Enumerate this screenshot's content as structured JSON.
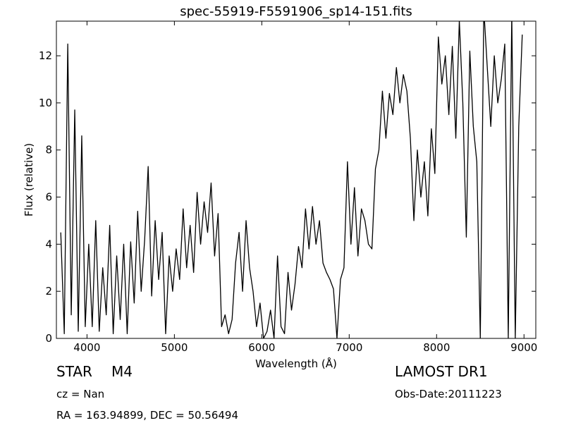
{
  "chart_data": {
    "type": "line",
    "title": "spec-55919-F5591906_sp14-151.fits",
    "x_label": "Wavelength (Å)",
    "y_label": "Flux (relative)",
    "annotations": [
      "STAR",
      "M4",
      "LAMOST DR1",
      "cz = Nan",
      "Obs-Date:20111223",
      "RA = 163.94899, DEC = 50.56494"
    ],
    "xlim": [
      3650,
      9135
    ],
    "ylim": [
      0,
      13.47
    ],
    "xticks": [
      4000,
      5000,
      6000,
      7000,
      8000,
      9000
    ],
    "yticks": [
      0,
      2,
      4,
      6,
      8,
      10,
      12
    ],
    "grid": false,
    "series": [
      {
        "color": "#000000",
        "x": [
          3700,
          3740,
          3780,
          3820,
          3860,
          3900,
          3940,
          3980,
          4020,
          4060,
          4100,
          4140,
          4180,
          4220,
          4260,
          4300,
          4340,
          4380,
          4420,
          4460,
          4500,
          4540,
          4580,
          4620,
          4660,
          4700,
          4740,
          4780,
          4820,
          4860,
          4900,
          4940,
          4980,
          5020,
          5060,
          5100,
          5140,
          5180,
          5220,
          5260,
          5300,
          5340,
          5380,
          5420,
          5460,
          5500,
          5540,
          5580,
          5620,
          5660,
          5700,
          5740,
          5780,
          5820,
          5860,
          5900,
          5940,
          5980,
          6020,
          6060,
          6100,
          6140,
          6180,
          6220,
          6260,
          6300,
          6340,
          6380,
          6420,
          6460,
          6500,
          6540,
          6580,
          6620,
          6660,
          6700,
          6740,
          6780,
          6820,
          6860,
          6900,
          6940,
          6980,
          7020,
          7060,
          7100,
          7140,
          7180,
          7220,
          7260,
          7300,
          7340,
          7380,
          7420,
          7460,
          7500,
          7540,
          7580,
          7620,
          7660,
          7700,
          7740,
          7780,
          7820,
          7860,
          7900,
          7940,
          7980,
          8020,
          8060,
          8100,
          8140,
          8180,
          8220,
          8260,
          8300,
          8340,
          8380,
          8420,
          8460,
          8500,
          8540,
          8580,
          8620,
          8660,
          8700,
          8740,
          8780,
          8820,
          8860,
          8900,
          8940,
          8980
        ],
        "values": [
          4.5,
          0.2,
          12.5,
          1,
          9.7,
          0.3,
          8.6,
          0.5,
          4,
          0.5,
          5,
          0.3,
          3,
          1,
          4.8,
          0.2,
          3.5,
          0.8,
          4,
          0.2,
          4.1,
          1.5,
          5.4,
          2,
          4.2,
          7.3,
          1.8,
          5,
          2.5,
          4.5,
          0.2,
          3.5,
          2,
          3.8,
          2.5,
          5.5,
          3,
          4.8,
          2.8,
          6.2,
          4,
          5.8,
          4.5,
          6.6,
          3.5,
          5.3,
          0.5,
          1,
          0.2,
          0.8,
          3.2,
          4.5,
          2,
          5,
          3,
          2,
          0.5,
          1.5,
          0,
          0.3,
          1.2,
          0,
          3.5,
          0.5,
          0.2,
          2.8,
          1.2,
          2.3,
          3.9,
          3,
          5.5,
          3.8,
          5.6,
          4,
          5,
          3.2,
          2.8,
          2.5,
          2.1,
          0,
          2.5,
          3,
          7.5,
          4,
          6.4,
          3.5,
          5.5,
          5,
          4,
          3.8,
          7.2,
          8,
          10.5,
          8.5,
          10.4,
          9.5,
          11.5,
          10,
          11.2,
          10.5,
          8.5,
          5,
          8,
          6,
          7.5,
          5.2,
          8.9,
          7,
          12.8,
          10.8,
          12,
          9.5,
          12.4,
          8.5,
          13.5,
          10,
          4.3,
          12.2,
          9,
          7.5,
          0,
          14,
          11.5,
          9,
          12,
          10,
          11,
          12.5,
          0,
          13.8,
          0,
          9,
          12.9
        ]
      }
    ]
  }
}
